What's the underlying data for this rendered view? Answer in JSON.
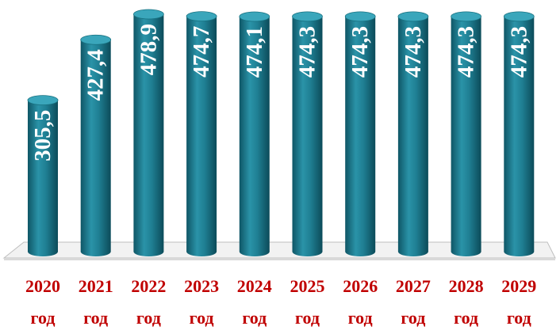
{
  "chart_data": {
    "type": "bar",
    "categories": [
      "2020 год",
      "2021 год",
      "2022 год",
      "2023 год",
      "2024 год",
      "2025 год",
      "2026 год",
      "2027 год",
      "2028 год",
      "2029 год"
    ],
    "values": [
      305.5,
      427.4,
      478.9,
      474.7,
      474.1,
      474.3,
      474.3,
      474.3,
      474.3,
      474.3
    ],
    "value_labels": [
      "305,5",
      "427,4",
      "478,9",
      "474,7",
      "474,1",
      "474,3",
      "474,3",
      "474,3",
      "474,3",
      "474,3"
    ],
    "color": "#1f7f93"
  }
}
